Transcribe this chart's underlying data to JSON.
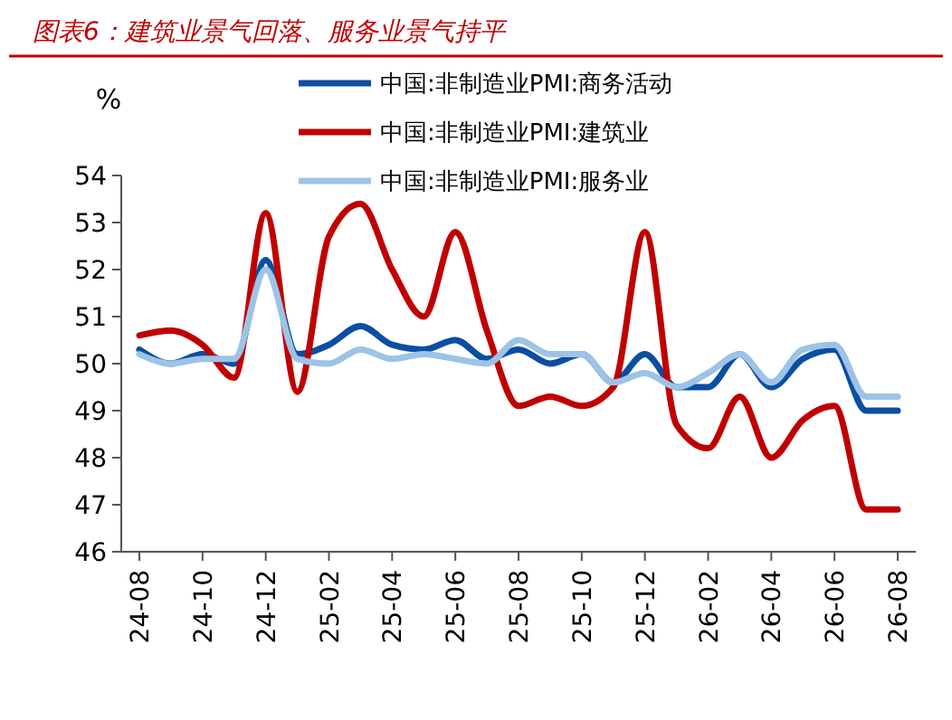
{
  "chart_data": {
    "type": "line",
    "title": "图表6：建筑业景气回落、服务业景气持平",
    "ylabel": "%",
    "categories": [
      "24-08",
      null,
      "24-10",
      null,
      "24-12",
      null,
      "25-02",
      null,
      "25-04",
      null,
      "25-06",
      null,
      "25-08",
      null,
      "25-10",
      null,
      "25-12",
      null,
      "26-02",
      null,
      "26-04",
      null,
      "26-06",
      null,
      "26-08"
    ],
    "series": [
      {
        "name": "中国:非制造业PMI:商务活动",
        "color": "#0b4ea2",
        "values": [
          50.3,
          50.0,
          50.2,
          50.0,
          52.2,
          50.2,
          50.4,
          50.8,
          50.4,
          50.3,
          50.5,
          50.1,
          50.3,
          50.0,
          50.2,
          49.6,
          50.2,
          49.5,
          49.5,
          50.2,
          49.5,
          50.1,
          50.3,
          49.0,
          49.0
        ]
      },
      {
        "name": "中国:非制造业PMI:建筑业",
        "color": "#c00000",
        "values": [
          50.6,
          50.7,
          50.4,
          49.7,
          53.2,
          49.4,
          52.7,
          53.4,
          52.0,
          51.0,
          52.8,
          50.7,
          49.1,
          49.3,
          49.1,
          49.5,
          52.8,
          48.7,
          48.2,
          49.3,
          48.0,
          48.8,
          49.1,
          46.9,
          46.9
        ]
      },
      {
        "name": "中国:非制造业PMI:服务业",
        "color": "#9dc3e6",
        "values": [
          50.2,
          50.0,
          50.1,
          50.1,
          52.0,
          50.1,
          50.0,
          50.3,
          50.1,
          50.2,
          50.1,
          50.0,
          50.5,
          50.2,
          50.2,
          49.6,
          49.8,
          49.5,
          49.8,
          50.2,
          49.6,
          50.3,
          50.4,
          49.3,
          49.3
        ]
      }
    ],
    "ylim": [
      46,
      54
    ],
    "yticks": [
      46,
      47,
      48,
      49,
      50,
      51,
      52,
      53,
      54
    ],
    "grid": false,
    "legend": "top",
    "line_style": "solid",
    "marker": "none"
  }
}
